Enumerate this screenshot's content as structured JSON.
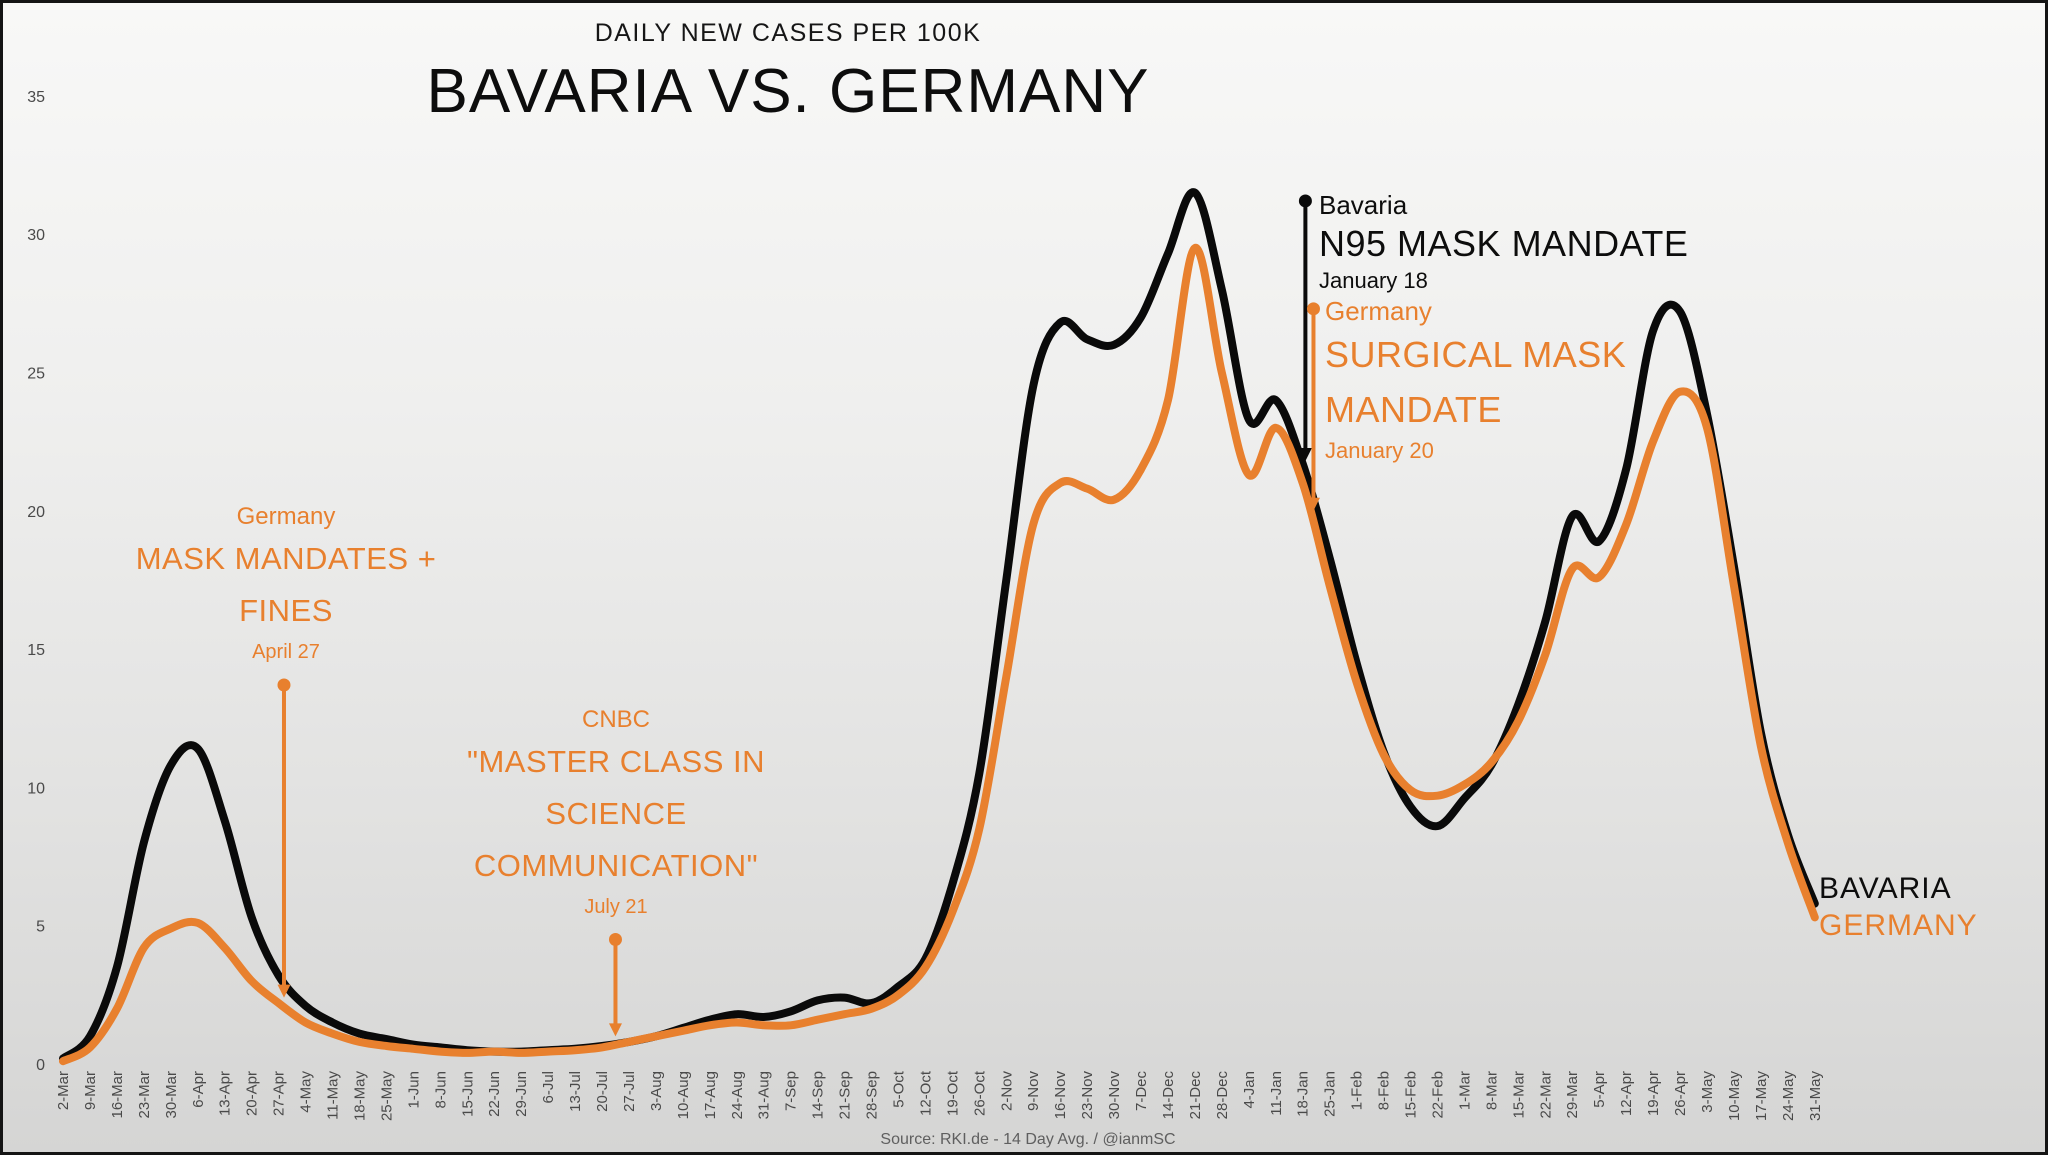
{
  "header": {
    "subtitle": "DAILY NEW CASES PER 100K",
    "title": "BAVARIA VS. GERMANY"
  },
  "source": "Source: RKI.de - 14 Day Avg. / @ianmSC",
  "series_end_labels": {
    "bavaria": "BAVARIA",
    "germany": "GERMANY"
  },
  "colors": {
    "bavaria": "#0A0A0A",
    "germany": "#E8802E",
    "axis_text": "#4a4a4a"
  },
  "annotations": {
    "germany_mask_mandates": {
      "eyebrow": "Germany",
      "lines": [
        "MASK MANDATES +",
        "FINES"
      ],
      "date": "April 27",
      "color": "#E8802E",
      "marker": {
        "week": 8.2,
        "value_from": 13.7,
        "value_to": 2.4
      }
    },
    "cnbc": {
      "eyebrow": "CNBC",
      "lines": [
        "\"MASTER CLASS IN",
        "SCIENCE",
        "COMMUNICATION\""
      ],
      "date": "July 21",
      "color": "#E8802E",
      "marker": {
        "week": 20.5,
        "value_from": 4.5,
        "value_to": 1.0
      }
    },
    "bavaria_n95": {
      "eyebrow": "Bavaria",
      "lines": [
        "N95 MASK MANDATE"
      ],
      "date": "January 18",
      "color": "#0A0A0A",
      "marker": {
        "week": 46.1,
        "value_from": 31.2,
        "value_to": 21.8
      }
    },
    "germany_surgical": {
      "eyebrow": "Germany",
      "lines": [
        "SURGICAL MASK",
        "MANDATE"
      ],
      "date": "January 20",
      "color": "#E8802E",
      "marker": {
        "week": 46.4,
        "value_from": 27.3,
        "value_to": 20.0
      }
    }
  },
  "chart_data": {
    "type": "line",
    "title": "BAVARIA VS. GERMANY",
    "subtitle": "DAILY NEW CASES PER 100K",
    "ylabel": "",
    "xlabel": "",
    "ylim": [
      0,
      35
    ],
    "y_ticks": [
      0,
      5,
      10,
      15,
      20,
      25,
      30,
      35
    ],
    "grid": false,
    "legend_position": "end-of-line labels",
    "x": [
      "2-Mar",
      "9-Mar",
      "16-Mar",
      "23-Mar",
      "30-Mar",
      "6-Apr",
      "13-Apr",
      "20-Apr",
      "27-Apr",
      "4-May",
      "11-May",
      "18-May",
      "25-May",
      "1-Jun",
      "8-Jun",
      "15-Jun",
      "22-Jun",
      "29-Jun",
      "6-Jul",
      "13-Jul",
      "20-Jul",
      "27-Jul",
      "3-Aug",
      "10-Aug",
      "17-Aug",
      "24-Aug",
      "31-Aug",
      "7-Sep",
      "14-Sep",
      "21-Sep",
      "28-Sep",
      "5-Oct",
      "12-Oct",
      "19-Oct",
      "26-Oct",
      "2-Nov",
      "9-Nov",
      "16-Nov",
      "23-Nov",
      "30-Nov",
      "7-Dec",
      "14-Dec",
      "21-Dec",
      "28-Dec",
      "4-Jan",
      "11-Jan",
      "18-Jan",
      "25-Jan",
      "1-Feb",
      "8-Feb",
      "15-Feb",
      "22-Feb",
      "1-Mar",
      "8-Mar",
      "15-Mar",
      "22-Mar",
      "29-Mar",
      "5-Apr",
      "12-Apr",
      "19-Apr",
      "26-Apr",
      "3-May",
      "10-May",
      "17-May",
      "24-May",
      "31-May"
    ],
    "series": [
      {
        "name": "Bavaria",
        "color": "#0A0A0A",
        "values": [
          0.2,
          1.0,
          3.5,
          8.0,
          10.8,
          11.4,
          8.8,
          5.3,
          3.2,
          2.1,
          1.5,
          1.1,
          0.9,
          0.7,
          0.6,
          0.5,
          0.45,
          0.45,
          0.5,
          0.55,
          0.65,
          0.8,
          1.0,
          1.3,
          1.6,
          1.8,
          1.7,
          1.9,
          2.3,
          2.4,
          2.2,
          2.8,
          3.8,
          6.5,
          10.5,
          17.5,
          24.5,
          26.8,
          26.2,
          26.0,
          27.0,
          29.3,
          31.5,
          28.0,
          23.3,
          24.0,
          21.7,
          18.3,
          14.5,
          11.3,
          9.3,
          8.6,
          9.6,
          10.8,
          13.0,
          16.0,
          19.8,
          18.9,
          21.5,
          26.5,
          27.2,
          23.5,
          18.0,
          12.0,
          8.3,
          5.8
        ]
      },
      {
        "name": "Germany",
        "color": "#E8802E",
        "values": [
          0.1,
          0.6,
          2.0,
          4.2,
          4.9,
          5.1,
          4.2,
          3.0,
          2.2,
          1.5,
          1.1,
          0.8,
          0.65,
          0.55,
          0.45,
          0.4,
          0.45,
          0.4,
          0.45,
          0.5,
          0.6,
          0.8,
          1.0,
          1.2,
          1.4,
          1.5,
          1.4,
          1.4,
          1.6,
          1.8,
          2.0,
          2.5,
          3.5,
          5.5,
          8.5,
          14.0,
          19.5,
          21.0,
          20.8,
          20.4,
          21.5,
          24.0,
          29.5,
          25.0,
          21.3,
          23.0,
          21.0,
          17.3,
          13.8,
          11.2,
          9.9,
          9.7,
          10.1,
          10.9,
          12.4,
          14.8,
          17.9,
          17.6,
          19.5,
          22.5,
          24.3,
          23.0,
          17.3,
          11.5,
          8.0,
          5.3
        ]
      }
    ],
    "source": "Source: RKI.de - 14 Day Avg. / @ianmSC"
  }
}
